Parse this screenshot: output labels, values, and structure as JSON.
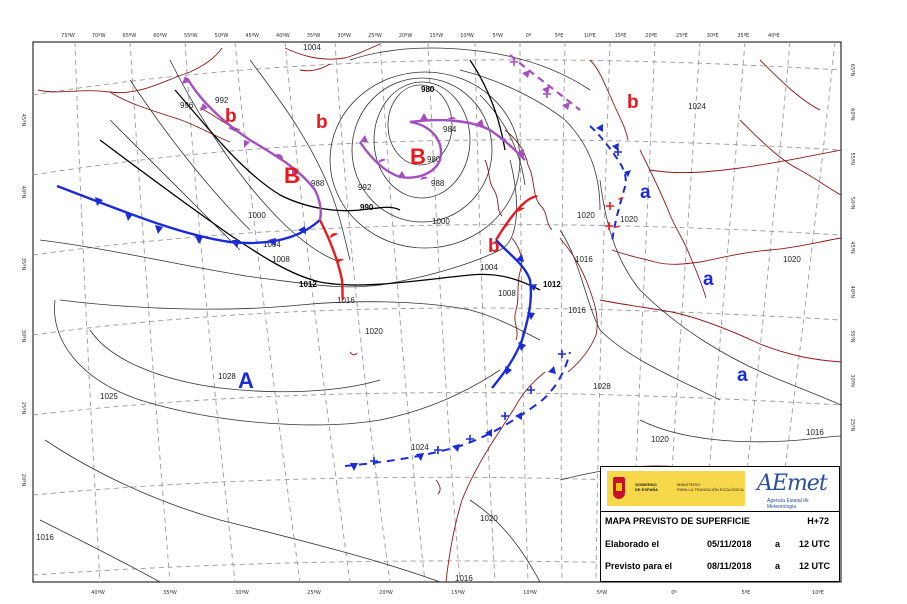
{
  "map": {
    "top_longitudes": [
      "75ºW",
      "70ºW",
      "65ºW",
      "60ºW",
      "55ºW",
      "50ºW",
      "45ºW",
      "40ºW",
      "35ºW",
      "30ºW",
      "25ºW",
      "20ºW",
      "15ºW",
      "10ºW",
      "5ºW",
      "0º",
      "5ºE",
      "10ºE",
      "15ºE",
      "20ºE",
      "25ºE",
      "30ºE",
      "35ºE",
      "40ºE"
    ],
    "bottom_longitudes": [
      "40ºW",
      "35ºW",
      "30ºW",
      "25ºW",
      "20ºW",
      "15ºW",
      "10ºW",
      "5ºW",
      "0º",
      "5ºE",
      "10ºE"
    ],
    "left_latitudes": [
      "45ºN",
      "40ºN",
      "35ºN",
      "30ºN",
      "25ºN",
      "20ºN"
    ],
    "right_latitudes": [
      "65ºN",
      "60ºN",
      "55ºN",
      "50ºN",
      "45ºN",
      "40ºN",
      "35ºN",
      "30ºN",
      "25ºN"
    ],
    "isobar_labels": [
      {
        "text": "1004",
        "bold": false
      },
      {
        "text": "992",
        "bold": false
      },
      {
        "text": "996",
        "bold": false
      },
      {
        "text": "980",
        "bold": true
      },
      {
        "text": "984",
        "bold": false
      },
      {
        "text": "980",
        "bold": false
      },
      {
        "text": "988",
        "bold": false
      },
      {
        "text": "992",
        "bold": false
      },
      {
        "text": "988",
        "bold": false
      },
      {
        "text": "990",
        "bold": true
      },
      {
        "text": "1000",
        "bold": false
      },
      {
        "text": "1000",
        "bold": false
      },
      {
        "text": "1004",
        "bold": false
      },
      {
        "text": "1008",
        "bold": false
      },
      {
        "text": "1012",
        "bold": true
      },
      {
        "text": "1016",
        "bold": false
      },
      {
        "text": "1020",
        "bold": false
      },
      {
        "text": "1004",
        "bold": false
      },
      {
        "text": "1008",
        "bold": false
      },
      {
        "text": "1012",
        "bold": true
      },
      {
        "text": "1016",
        "bold": false
      },
      {
        "text": "1016",
        "bold": false
      },
      {
        "text": "1020",
        "bold": false
      },
      {
        "text": "1020",
        "bold": false
      },
      {
        "text": "1024",
        "bold": false
      },
      {
        "text": "1028",
        "bold": false
      },
      {
        "text": "1028",
        "bold": false
      },
      {
        "text": "1025",
        "bold": false
      },
      {
        "text": "1024",
        "bold": false
      },
      {
        "text": "1020",
        "bold": false
      },
      {
        "text": "1020",
        "bold": false
      },
      {
        "text": "1016",
        "bold": false
      },
      {
        "text": "1016",
        "bold": false
      },
      {
        "text": "1020",
        "bold": false
      },
      {
        "text": "1016",
        "bold": false
      }
    ],
    "systems": [
      {
        "text": "b",
        "kind": "low-secondary"
      },
      {
        "text": "B",
        "kind": "low"
      },
      {
        "text": "b",
        "kind": "low-secondary"
      },
      {
        "text": "B",
        "kind": "low"
      },
      {
        "text": "b",
        "kind": "low-secondary"
      },
      {
        "text": "b",
        "kind": "low-secondary"
      },
      {
        "text": "a",
        "kind": "high-secondary"
      },
      {
        "text": "a",
        "kind": "high-secondary"
      },
      {
        "text": "a",
        "kind": "high-secondary"
      },
      {
        "text": "A",
        "kind": "high"
      }
    ],
    "colors": {
      "low": "#e8191e",
      "high": "#1b2bd6",
      "occluded": "#a44fc0",
      "warm": "#e8191e",
      "cold": "#1b2bd6",
      "coast": "#8b1a1a",
      "isobar": "#333333",
      "graticule": "#9a9a9a"
    }
  },
  "legend": {
    "government": "GOBIERNO\nDE ESPAÑA",
    "ministry": "MINISTERIO\nPARA LA TRANSICIÓN ECOLÓGICA",
    "logo_word": "AEmet",
    "logo_sub": "Agencia Estatal de Meteorología",
    "title": "MAPA PREVISTO DE SUPERFICIE",
    "horizon": "H+72",
    "row1": {
      "label": "Elaborado el",
      "date": "05/11/2018",
      "sep": "a",
      "time": "12 UTC"
    },
    "row2": {
      "label": "Previsto para el",
      "date": "08/11/2018",
      "sep": "a",
      "time": "12 UTC"
    }
  }
}
